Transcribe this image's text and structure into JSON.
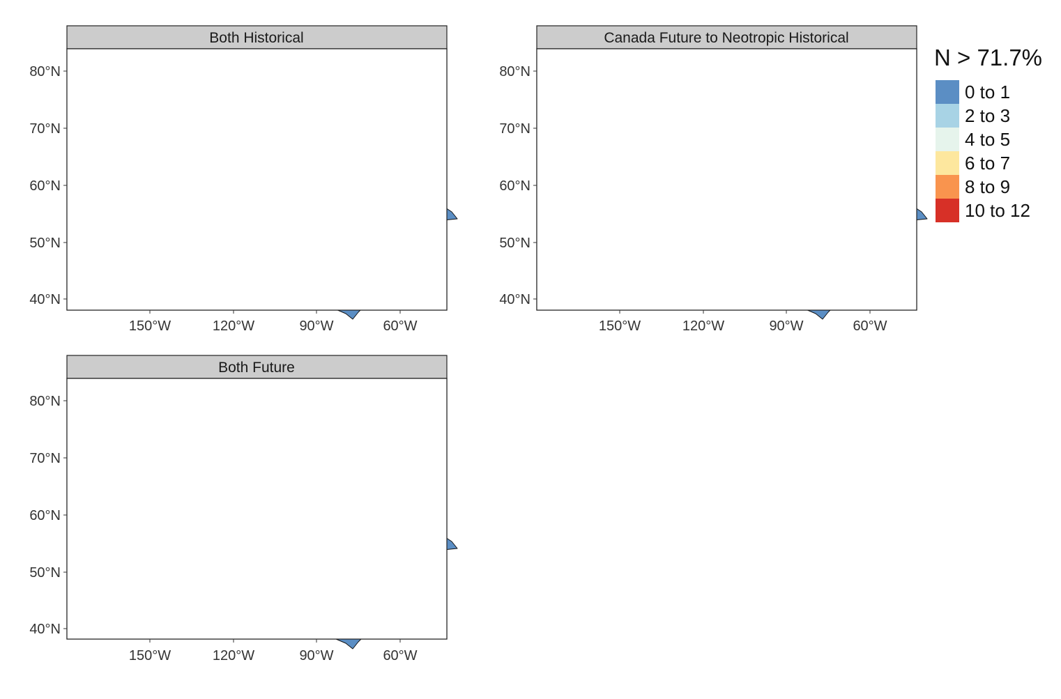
{
  "colors": {
    "c0_1": "#5b8ec4",
    "c2_3": "#a8d3e5",
    "c4_5": "#e6f4ec",
    "c6_7": "#fde79e",
    "c8_9": "#f9944e",
    "c10_12": "#d73027"
  },
  "panels": [
    {
      "id": "p1",
      "title": "Both Historical"
    },
    {
      "id": "p2",
      "title": "Canada Future to Neotropic Historical"
    },
    {
      "id": "p3",
      "title": "Both Future"
    }
  ],
  "axes": {
    "y_ticks": [
      "80°N",
      "70°N",
      "60°N",
      "50°N",
      "40°N"
    ],
    "x_ticks": [
      "150°W",
      "120°W",
      "90°W",
      "60°W"
    ]
  },
  "legend": {
    "title": "N > 71.7%",
    "items": [
      {
        "label": "0 to 1",
        "color": "#5b8ec4"
      },
      {
        "label": "2 to 3",
        "color": "#a8d3e5"
      },
      {
        "label": "4 to 5",
        "color": "#e6f4ec"
      },
      {
        "label": "6 to 7",
        "color": "#fde79e"
      },
      {
        "label": "8 to 9",
        "color": "#f9944e"
      },
      {
        "label": "10 to 12",
        "color": "#d73027"
      }
    ]
  }
}
